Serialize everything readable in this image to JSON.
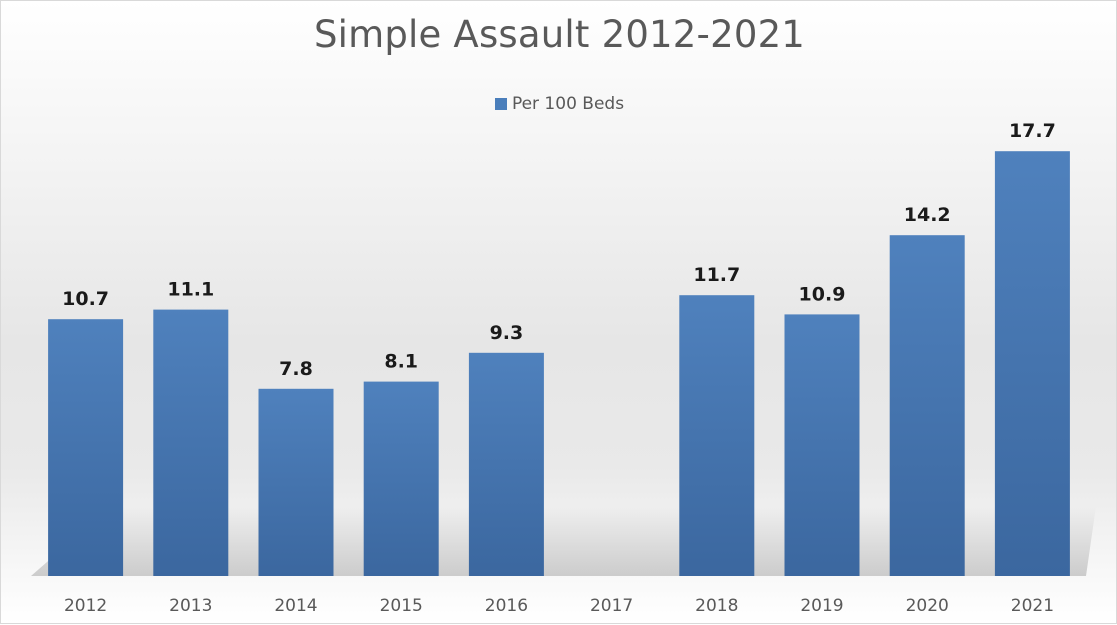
{
  "chart_data": {
    "type": "bar",
    "title": "Simple Assault 2012-2021",
    "xlabel": "",
    "ylabel": "",
    "categories": [
      "2012",
      "2013",
      "2014",
      "2015",
      "2016",
      "2017",
      "2018",
      "2019",
      "2020",
      "2021"
    ],
    "series": [
      {
        "name": "Per 100 Beds",
        "values": [
          10.7,
          11.1,
          7.8,
          8.1,
          9.3,
          null,
          11.7,
          10.9,
          14.2,
          17.7
        ],
        "color": "#4a7ebb"
      }
    ],
    "data_labels": [
      "10.7",
      "11.1",
      "7.8",
      "8.1",
      "9.3",
      "",
      "11.7",
      "10.9",
      "14.2",
      "17.7"
    ],
    "ylim": [
      0,
      20
    ],
    "grid": false,
    "legend_position": "top"
  }
}
